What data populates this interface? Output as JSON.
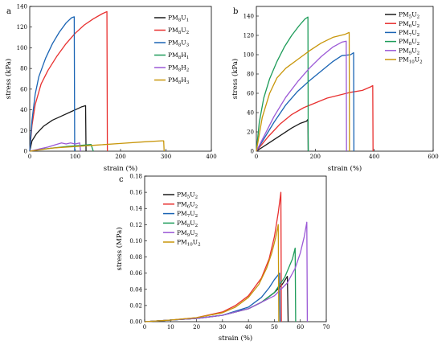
{
  "chart_data": [
    {
      "type": "line",
      "panel_label": "a",
      "xlabel": "strain (%)",
      "ylabel": "stress (kPa)",
      "xlim": [
        0,
        400
      ],
      "ylim": [
        0,
        140
      ],
      "xticks": [
        "0",
        "100",
        "200",
        "300",
        "400"
      ],
      "yticks": [
        "0",
        "20",
        "40",
        "60",
        "80",
        "100",
        "120",
        "140"
      ],
      "xtick_values": [
        0,
        100,
        200,
        300,
        400
      ],
      "ytick_values": [
        0,
        20,
        40,
        60,
        80,
        100,
        120,
        140
      ],
      "legend_position": "top-right",
      "series": [
        {
          "name": "PM8U1",
          "label_main": "PM",
          "label_sub1": "8",
          "label_mid": "U",
          "label_sub2": "1",
          "color": "#1a1a1a",
          "points": [
            [
              0,
              0
            ],
            [
              5,
              10
            ],
            [
              15,
              17
            ],
            [
              30,
              24
            ],
            [
              50,
              30
            ],
            [
              70,
              34
            ],
            [
              90,
              38
            ],
            [
              105,
              41
            ],
            [
              115,
              43
            ],
            [
              123,
              44
            ],
            [
              124,
              0
            ]
          ]
        },
        {
          "name": "PM8U2",
          "label_main": "PM",
          "label_sub1": "8",
          "label_mid": "U",
          "label_sub2": "2",
          "color": "#e8302f",
          "points": [
            [
              0,
              0
            ],
            [
              5,
              25
            ],
            [
              12,
              45
            ],
            [
              25,
              65
            ],
            [
              40,
              78
            ],
            [
              60,
              92
            ],
            [
              80,
              104
            ],
            [
              100,
              114
            ],
            [
              120,
              122
            ],
            [
              140,
              128
            ],
            [
              160,
              133
            ],
            [
              170,
              135
            ],
            [
              171,
              0
            ]
          ]
        },
        {
          "name": "PM8U3",
          "label_main": "PM",
          "label_sub1": "8",
          "label_mid": "U",
          "label_sub2": "3",
          "color": "#1a64b4",
          "points": [
            [
              0,
              0
            ],
            [
              5,
              30
            ],
            [
              12,
              55
            ],
            [
              20,
              72
            ],
            [
              35,
              90
            ],
            [
              50,
              104
            ],
            [
              65,
              115
            ],
            [
              80,
              124
            ],
            [
              92,
              129
            ],
            [
              98,
              130
            ],
            [
              99,
              0
            ]
          ]
        },
        {
          "name": "PM8H1",
          "label_main": "PM",
          "label_sub1": "8",
          "label_mid": "H",
          "label_sub2": "1",
          "color": "#1e9c5a",
          "points": [
            [
              0,
              0
            ],
            [
              20,
              1.5
            ],
            [
              50,
              3
            ],
            [
              80,
              4.5
            ],
            [
              110,
              5.5
            ],
            [
              135,
              6.5
            ],
            [
              140,
              0
            ]
          ]
        },
        {
          "name": "PM8H2",
          "label_main": "PM",
          "label_sub1": "8",
          "label_mid": "H",
          "label_sub2": "2",
          "color": "#9b59d6",
          "points": [
            [
              0,
              0
            ],
            [
              20,
              2
            ],
            [
              40,
              4
            ],
            [
              55,
              6
            ],
            [
              70,
              8
            ],
            [
              80,
              7
            ],
            [
              90,
              8
            ],
            [
              100,
              7
            ],
            [
              110,
              8
            ],
            [
              112,
              0
            ]
          ]
        },
        {
          "name": "PM8H3",
          "label_main": "PM",
          "label_sub1": "8",
          "label_mid": "H",
          "label_sub2": "3",
          "color": "#c8960a",
          "points": [
            [
              0,
              0
            ],
            [
              50,
              3
            ],
            [
              100,
              4.5
            ],
            [
              150,
              6
            ],
            [
              200,
              7.5
            ],
            [
              250,
              9
            ],
            [
              290,
              10
            ],
            [
              295,
              10
            ],
            [
              296,
              0
            ]
          ]
        }
      ]
    },
    {
      "type": "line",
      "panel_label": "b",
      "xlabel": "strain (%)",
      "ylabel": "stress (kPa)",
      "xlim": [
        0,
        600
      ],
      "ylim": [
        0,
        150
      ],
      "xticks": [
        "0",
        "200",
        "400",
        "600"
      ],
      "yticks": [
        "0",
        "20",
        "40",
        "60",
        "80",
        "100",
        "120",
        "140"
      ],
      "xtick_values": [
        0,
        200,
        400,
        600
      ],
      "ytick_values": [
        0,
        20,
        40,
        60,
        80,
        100,
        120,
        140
      ],
      "legend_position": "top-right",
      "series": [
        {
          "name": "PM5U2",
          "label_main": "PM",
          "label_sub1": "5",
          "label_mid": "U",
          "label_sub2": "2",
          "color": "#1a1a1a",
          "points": [
            [
              0,
              0
            ],
            [
              40,
              8
            ],
            [
              80,
              16
            ],
            [
              120,
              24
            ],
            [
              150,
              29
            ],
            [
              170,
              31
            ],
            [
              175,
              33
            ],
            [
              176,
              0
            ]
          ]
        },
        {
          "name": "PM6U2",
          "label_main": "PM",
          "label_sub1": "6",
          "label_mid": "U",
          "label_sub2": "2",
          "color": "#e8302f",
          "points": [
            [
              0,
              0
            ],
            [
              40,
              15
            ],
            [
              80,
              28
            ],
            [
              120,
              38
            ],
            [
              160,
              45
            ],
            [
              200,
              50
            ],
            [
              240,
              55
            ],
            [
              280,
              58
            ],
            [
              320,
              61
            ],
            [
              360,
              63
            ],
            [
              390,
              67
            ],
            [
              395,
              68
            ],
            [
              396,
              0
            ]
          ]
        },
        {
          "name": "PM7U2",
          "label_main": "PM",
          "label_sub1": "7",
          "label_mid": "U",
          "label_sub2": "2",
          "color": "#1a64b4",
          "points": [
            [
              0,
              0
            ],
            [
              30,
              15
            ],
            [
              60,
              30
            ],
            [
              100,
              48
            ],
            [
              140,
              62
            ],
            [
              180,
              73
            ],
            [
              220,
              83
            ],
            [
              260,
              93
            ],
            [
              290,
              99
            ],
            [
              320,
              100
            ],
            [
              330,
              102
            ],
            [
              331,
              0
            ]
          ]
        },
        {
          "name": "PM8U2",
          "label_main": "PM",
          "label_sub1": "8",
          "label_mid": "U",
          "label_sub2": "2",
          "color": "#1e9c5a",
          "points": [
            [
              0,
              0
            ],
            [
              10,
              30
            ],
            [
              25,
              55
            ],
            [
              45,
              75
            ],
            [
              70,
              93
            ],
            [
              95,
              108
            ],
            [
              120,
              120
            ],
            [
              145,
              130
            ],
            [
              165,
              137
            ],
            [
              175,
              139
            ],
            [
              176,
              0
            ]
          ]
        },
        {
          "name": "PM9U2",
          "label_main": "PM",
          "label_sub1": "9",
          "label_mid": "U",
          "label_sub2": "2",
          "color": "#9b59d6",
          "points": [
            [
              0,
              0
            ],
            [
              30,
              18
            ],
            [
              60,
              36
            ],
            [
              100,
              56
            ],
            [
              140,
              72
            ],
            [
              180,
              86
            ],
            [
              220,
              98
            ],
            [
              260,
              108
            ],
            [
              290,
              113
            ],
            [
              305,
              114
            ],
            [
              306,
              0
            ]
          ]
        },
        {
          "name": "PM10U2",
          "label_main": "PM",
          "label_sub1": "10",
          "label_mid": "U",
          "label_sub2": "2",
          "color": "#c8960a",
          "points": [
            [
              0,
              0
            ],
            [
              20,
              35
            ],
            [
              45,
              60
            ],
            [
              70,
              76
            ],
            [
              100,
              86
            ],
            [
              140,
              95
            ],
            [
              180,
              104
            ],
            [
              220,
              112
            ],
            [
              260,
              118
            ],
            [
              300,
              121
            ],
            [
              315,
              123
            ],
            [
              316,
              0
            ]
          ]
        }
      ]
    },
    {
      "type": "line",
      "panel_label": "c",
      "xlabel": "strain (%)",
      "ylabel": "stress (MPa)",
      "xlim": [
        0,
        70
      ],
      "ylim": [
        0,
        0.18
      ],
      "xticks": [
        "0",
        "10",
        "20",
        "30",
        "40",
        "50",
        "60",
        "70"
      ],
      "yticks": [
        "0.00",
        "0.02",
        "0.04",
        "0.06",
        "0.08",
        "0.10",
        "0.12",
        "0.14",
        "0.16",
        "0.18"
      ],
      "xtick_values": [
        0,
        10,
        20,
        30,
        40,
        50,
        60,
        70
      ],
      "ytick_values": [
        0,
        0.02,
        0.04,
        0.06,
        0.08,
        0.1,
        0.12,
        0.14,
        0.16,
        0.18
      ],
      "legend_position": "top-left",
      "series": [
        {
          "name": "PM5U2",
          "label_main": "PM",
          "label_sub1": "5",
          "label_mid": "U",
          "label_sub2": "2",
          "color": "#1a1a1a",
          "points": [
            [
              0,
              0
            ],
            [
              10,
              0.002
            ],
            [
              20,
              0.004
            ],
            [
              30,
              0.008
            ],
            [
              40,
              0.016
            ],
            [
              45,
              0.024
            ],
            [
              50,
              0.036
            ],
            [
              53,
              0.046
            ],
            [
              55,
              0.056
            ],
            [
              55.3,
              0
            ]
          ]
        },
        {
          "name": "PM6U2",
          "label_main": "PM",
          "label_sub1": "6",
          "label_mid": "U",
          "label_sub2": "2",
          "color": "#e8302f",
          "points": [
            [
              0,
              0
            ],
            [
              10,
              0.002
            ],
            [
              20,
              0.005
            ],
            [
              30,
              0.012
            ],
            [
              35,
              0.02
            ],
            [
              40,
              0.032
            ],
            [
              45,
              0.054
            ],
            [
              48,
              0.078
            ],
            [
              50,
              0.105
            ],
            [
              51.5,
              0.135
            ],
            [
              52.5,
              0.16
            ],
            [
              52.7,
              0
            ]
          ]
        },
        {
          "name": "PM7U2",
          "label_main": "PM",
          "label_sub1": "7",
          "label_mid": "U",
          "label_sub2": "2",
          "color": "#1a64b4",
          "points": [
            [
              0,
              0
            ],
            [
              10,
              0.002
            ],
            [
              20,
              0.004
            ],
            [
              30,
              0.008
            ],
            [
              40,
              0.018
            ],
            [
              45,
              0.03
            ],
            [
              48,
              0.042
            ],
            [
              50,
              0.052
            ],
            [
              52,
              0.06
            ],
            [
              52.2,
              0
            ]
          ]
        },
        {
          "name": "PM8U2",
          "label_main": "PM",
          "label_sub1": "8",
          "label_mid": "U",
          "label_sub2": "2",
          "color": "#1e9c5a",
          "points": [
            [
              0,
              0
            ],
            [
              10,
              0.002
            ],
            [
              20,
              0.004
            ],
            [
              30,
              0.008
            ],
            [
              40,
              0.016
            ],
            [
              45,
              0.024
            ],
            [
              50,
              0.036
            ],
            [
              54,
              0.055
            ],
            [
              57,
              0.078
            ],
            [
              58,
              0.091
            ],
            [
              58.2,
              0
            ]
          ]
        },
        {
          "name": "PM9U2",
          "label_main": "PM",
          "label_sub1": "9",
          "label_mid": "U",
          "label_sub2": "2",
          "color": "#9b59d6",
          "points": [
            [
              0,
              0
            ],
            [
              10,
              0.002
            ],
            [
              20,
              0.004
            ],
            [
              30,
              0.008
            ],
            [
              40,
              0.016
            ],
            [
              50,
              0.032
            ],
            [
              55,
              0.048
            ],
            [
              58,
              0.066
            ],
            [
              60,
              0.085
            ],
            [
              61.5,
              0.105
            ],
            [
              62.5,
              0.123
            ],
            [
              62.7,
              0
            ]
          ]
        },
        {
          "name": "PM10U2",
          "label_main": "PM",
          "label_sub1": "10",
          "label_mid": "U",
          "label_sub2": "2",
          "color": "#c8960a",
          "points": [
            [
              0,
              0
            ],
            [
              10,
              0.002
            ],
            [
              20,
              0.005
            ],
            [
              30,
              0.011
            ],
            [
              35,
              0.018
            ],
            [
              40,
              0.03
            ],
            [
              44,
              0.046
            ],
            [
              47,
              0.066
            ],
            [
              49,
              0.085
            ],
            [
              50.5,
              0.104
            ],
            [
              51.5,
              0.12
            ],
            [
              51.7,
              0
            ]
          ]
        }
      ]
    }
  ]
}
